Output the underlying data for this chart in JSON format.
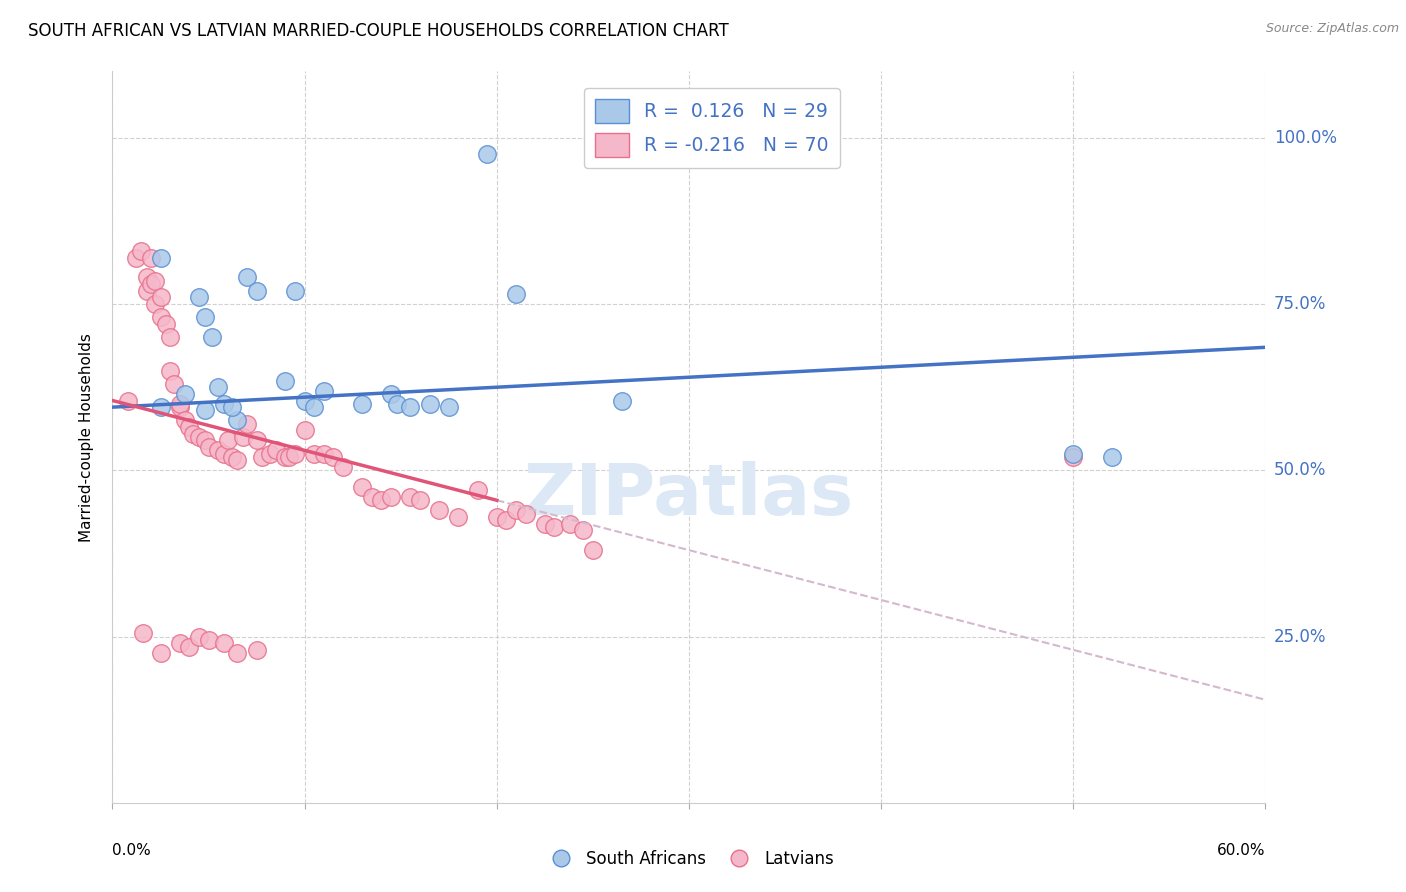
{
  "title": "SOUTH AFRICAN VS LATVIAN MARRIED-COUPLE HOUSEHOLDS CORRELATION CHART",
  "source": "Source: ZipAtlas.com",
  "ylabel": "Married-couple Households",
  "legend_blue_R": "0.126",
  "legend_blue_N": "29",
  "legend_pink_R": "-0.216",
  "legend_pink_N": "70",
  "legend_label_blue": "South Africans",
  "legend_label_pink": "Latvians",
  "blue_color": "#aac9e8",
  "pink_color": "#f5b8ca",
  "blue_edge_color": "#5b8fd4",
  "pink_edge_color": "#e8708a",
  "blue_line_color": "#4472c4",
  "pink_line_color": "#e05577",
  "dashed_line_color": "#d4b8cc",
  "label_color": "#4472c4",
  "watermark_color": "#dce8f5",
  "xlim": [
    0.0,
    0.6
  ],
  "ylim": [
    0.0,
    1.1
  ],
  "ytick_values": [
    0.25,
    0.5,
    0.75,
    1.0
  ],
  "ytick_labels": [
    "25.0%",
    "50.0%",
    "75.0%",
    "100.0%"
  ],
  "blue_line_x0": 0.0,
  "blue_line_y0": 0.595,
  "blue_line_x1": 0.6,
  "blue_line_y1": 0.685,
  "pink_line_x0": 0.0,
  "pink_line_y0": 0.605,
  "pink_line_x1_solid": 0.2,
  "pink_line_y1_solid": 0.455,
  "pink_line_x1_dash": 0.6,
  "pink_line_y1_dash": 0.155,
  "blue_points_x": [
    0.025,
    0.025,
    0.038,
    0.045,
    0.048,
    0.052,
    0.055,
    0.058,
    0.065,
    0.07,
    0.075,
    0.09,
    0.095,
    0.1,
    0.105,
    0.11,
    0.13,
    0.145,
    0.148,
    0.155,
    0.165,
    0.175,
    0.195,
    0.21,
    0.265,
    0.5,
    0.52,
    0.048,
    0.062
  ],
  "blue_points_y": [
    0.595,
    0.82,
    0.615,
    0.76,
    0.73,
    0.7,
    0.625,
    0.6,
    0.575,
    0.79,
    0.77,
    0.635,
    0.77,
    0.605,
    0.595,
    0.62,
    0.6,
    0.615,
    0.6,
    0.595,
    0.6,
    0.595,
    0.975,
    0.765,
    0.605,
    0.525,
    0.52,
    0.59,
    0.595
  ],
  "pink_points_x": [
    0.008,
    0.012,
    0.015,
    0.018,
    0.018,
    0.02,
    0.02,
    0.022,
    0.022,
    0.025,
    0.025,
    0.028,
    0.03,
    0.03,
    0.032,
    0.035,
    0.035,
    0.038,
    0.04,
    0.042,
    0.045,
    0.048,
    0.05,
    0.055,
    0.058,
    0.06,
    0.062,
    0.065,
    0.068,
    0.07,
    0.075,
    0.078,
    0.082,
    0.085,
    0.09,
    0.092,
    0.095,
    0.1,
    0.105,
    0.11,
    0.115,
    0.12,
    0.13,
    0.135,
    0.14,
    0.145,
    0.155,
    0.16,
    0.17,
    0.18,
    0.19,
    0.2,
    0.205,
    0.21,
    0.215,
    0.225,
    0.23,
    0.238,
    0.245,
    0.25,
    0.016,
    0.025,
    0.035,
    0.04,
    0.045,
    0.05,
    0.058,
    0.065,
    0.075,
    0.5
  ],
  "pink_points_y": [
    0.605,
    0.82,
    0.83,
    0.79,
    0.77,
    0.82,
    0.78,
    0.785,
    0.75,
    0.76,
    0.73,
    0.72,
    0.7,
    0.65,
    0.63,
    0.595,
    0.6,
    0.575,
    0.565,
    0.555,
    0.55,
    0.545,
    0.535,
    0.53,
    0.525,
    0.545,
    0.52,
    0.515,
    0.55,
    0.57,
    0.545,
    0.52,
    0.525,
    0.53,
    0.52,
    0.52,
    0.525,
    0.56,
    0.525,
    0.525,
    0.52,
    0.505,
    0.475,
    0.46,
    0.455,
    0.46,
    0.46,
    0.455,
    0.44,
    0.43,
    0.47,
    0.43,
    0.425,
    0.44,
    0.435,
    0.42,
    0.415,
    0.42,
    0.41,
    0.38,
    0.255,
    0.225,
    0.24,
    0.235,
    0.25,
    0.245,
    0.24,
    0.225,
    0.23,
    0.52
  ]
}
